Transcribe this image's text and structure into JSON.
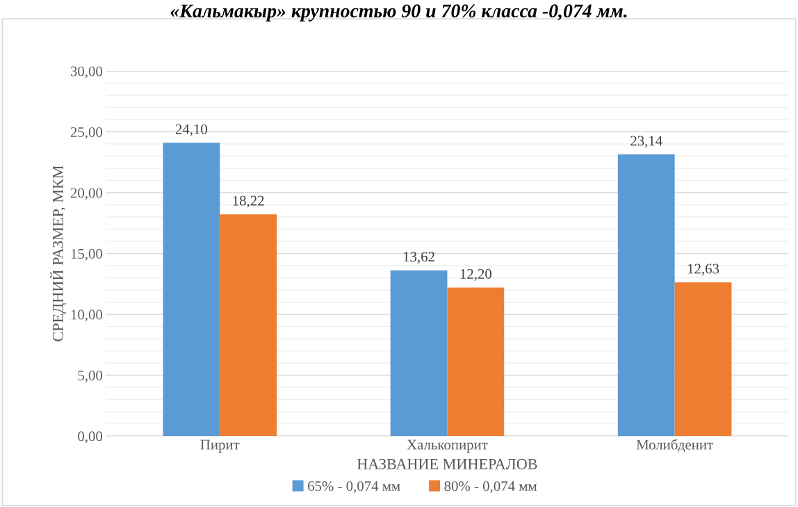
{
  "chart_data": {
    "type": "bar",
    "title": "«Кальмакыр» крупностью 90 и 70% класса -0,074 мм.",
    "xlabel": "НАЗВАНИЕ МИНЕРАЛОВ",
    "ylabel": "СРЕДНИЙ РАЗМЕР, МКМ",
    "categories": [
      "Пирит",
      "Халькопирит",
      "Молибденит"
    ],
    "series": [
      {
        "name": "65% - 0,074 мм",
        "color": "#5b9bd5",
        "values": [
          24.1,
          13.62,
          23.14
        ],
        "value_labels": [
          "24,10",
          "13,62",
          "23,14"
        ]
      },
      {
        "name": "80% - 0,074 мм",
        "color": "#ed7d31",
        "values": [
          18.22,
          12.2,
          12.63
        ],
        "value_labels": [
          "18,22",
          "12,20",
          "12,63"
        ]
      }
    ],
    "ylim": [
      0,
      30
    ],
    "yticks": [
      {
        "value": 0,
        "label": "0,00"
      },
      {
        "value": 5,
        "label": "5,00"
      },
      {
        "value": 10,
        "label": "10,00"
      },
      {
        "value": 15,
        "label": "15,00"
      },
      {
        "value": 20,
        "label": "20,00"
      },
      {
        "value": 25,
        "label": "25,00"
      },
      {
        "value": 30,
        "label": "30,00"
      }
    ],
    "grid": "y",
    "legend": "bottom"
  }
}
